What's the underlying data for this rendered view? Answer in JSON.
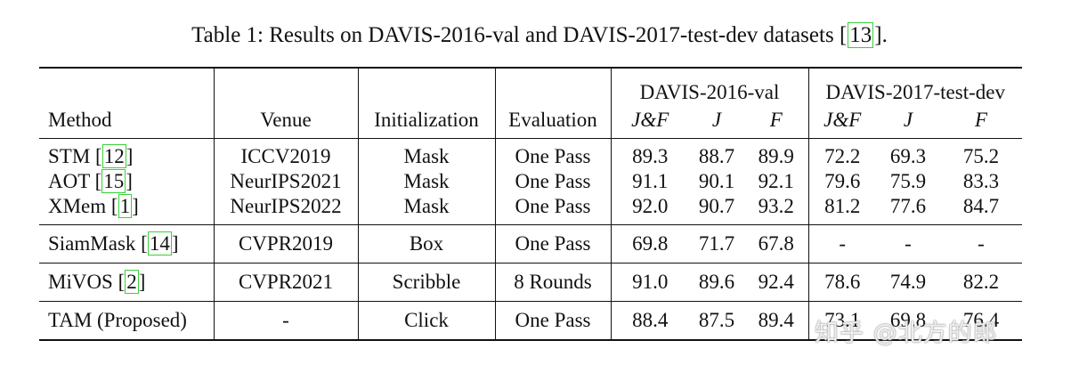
{
  "caption": {
    "prefix": "Table 1: Results on DAVIS-2016-val and DAVIS-2017-test-dev datasets ",
    "open": "[",
    "ref": "13",
    "close": "]."
  },
  "header": {
    "method": "Method",
    "venue": "Venue",
    "initialization": "Initialization",
    "evaluation": "Evaluation",
    "group_2016": "DAVIS-2016-val",
    "group_2017": "DAVIS-2017-test-dev",
    "jf": "J&F",
    "j": "J",
    "f": "F"
  },
  "rows": [
    {
      "name": "STM",
      "ref": "12",
      "venue": "ICCV2019",
      "init": "Mask",
      "eval": "One Pass",
      "v16": [
        "89.3",
        "88.7",
        "89.9"
      ],
      "v17": [
        "72.2",
        "69.3",
        "75.2"
      ]
    },
    {
      "name": "AOT",
      "ref": "15",
      "venue": "NeurIPS2021",
      "init": "Mask",
      "eval": "One Pass",
      "v16": [
        "91.1",
        "90.1",
        "92.1"
      ],
      "v17": [
        "79.6",
        "75.9",
        "83.3"
      ]
    },
    {
      "name": "XMem",
      "ref": "1",
      "venue": "NeurIPS2022",
      "init": "Mask",
      "eval": "One Pass",
      "v16": [
        "92.0",
        "90.7",
        "93.2"
      ],
      "v17": [
        "81.2",
        "77.6",
        "84.7"
      ]
    },
    {
      "name": "SiamMask",
      "ref": "14",
      "venue": "CVPR2019",
      "init": "Box",
      "eval": "One Pass",
      "v16": [
        "69.8",
        "71.7",
        "67.8"
      ],
      "v17": [
        "-",
        "-",
        "-"
      ]
    },
    {
      "name": "MiVOS",
      "ref": "2",
      "venue": "CVPR2021",
      "init": "Scribble",
      "eval": "8 Rounds",
      "v16": [
        "91.0",
        "89.6",
        "92.4"
      ],
      "v17": [
        "78.6",
        "74.9",
        "82.2"
      ]
    },
    {
      "name": "TAM (Proposed)",
      "ref": "",
      "venue": "-",
      "init": "Click",
      "eval": "One Pass",
      "v16": [
        "88.4",
        "87.5",
        "89.4"
      ],
      "v17": [
        "73.1",
        "69.8",
        "76.4"
      ]
    }
  ],
  "watermark": "知乎 @北方的郎"
}
